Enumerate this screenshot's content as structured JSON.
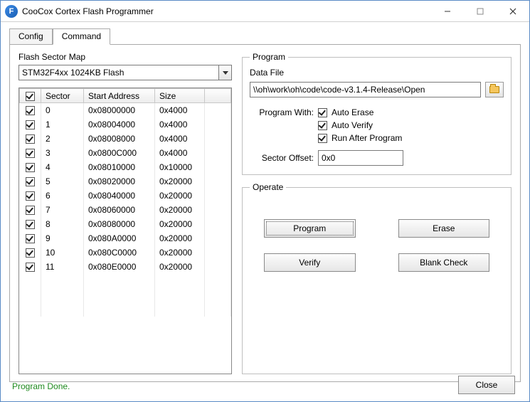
{
  "window": {
    "title": "CooCox Cortex Flash Programmer"
  },
  "tabs": {
    "config": "Config",
    "command": "Command",
    "active": "command"
  },
  "flash_map": {
    "title": "Flash Sector Map",
    "device": "STM32F4xx 1024KB Flash",
    "columns": {
      "check": "",
      "sector": "Sector",
      "start": "Start Address",
      "size": "Size"
    },
    "header_checked": true,
    "rows": [
      {
        "checked": true,
        "sector": "0",
        "start": "0x08000000",
        "size": "0x4000"
      },
      {
        "checked": true,
        "sector": "1",
        "start": "0x08004000",
        "size": "0x4000"
      },
      {
        "checked": true,
        "sector": "2",
        "start": "0x08008000",
        "size": "0x4000"
      },
      {
        "checked": true,
        "sector": "3",
        "start": "0x0800C000",
        "size": "0x4000"
      },
      {
        "checked": true,
        "sector": "4",
        "start": "0x08010000",
        "size": "0x10000"
      },
      {
        "checked": true,
        "sector": "5",
        "start": "0x08020000",
        "size": "0x20000"
      },
      {
        "checked": true,
        "sector": "6",
        "start": "0x08040000",
        "size": "0x20000"
      },
      {
        "checked": true,
        "sector": "7",
        "start": "0x08060000",
        "size": "0x20000"
      },
      {
        "checked": true,
        "sector": "8",
        "start": "0x08080000",
        "size": "0x20000"
      },
      {
        "checked": true,
        "sector": "9",
        "start": "0x080A0000",
        "size": "0x20000"
      },
      {
        "checked": true,
        "sector": "10",
        "start": "0x080C0000",
        "size": "0x20000"
      },
      {
        "checked": true,
        "sector": "11",
        "start": "0x080E0000",
        "size": "0x20000"
      }
    ]
  },
  "program": {
    "legend": "Program",
    "data_file_label": "Data File",
    "data_file_value": "\\\\oh\\work\\oh\\code\\code-v3.1.4-Release\\Open",
    "program_with_label": "Program With:",
    "auto_erase": {
      "label": "Auto Erase",
      "checked": true
    },
    "auto_verify": {
      "label": "Auto Verify",
      "checked": true
    },
    "run_after": {
      "label": "Run After Program",
      "checked": true
    },
    "sector_offset_label": "Sector Offset:",
    "sector_offset_value": "0x0"
  },
  "operate": {
    "legend": "Operate",
    "program_btn": "Program",
    "erase_btn": "Erase",
    "verify_btn": "Verify",
    "blank_btn": "Blank Check"
  },
  "footer": {
    "status": "Program Done.",
    "close": "Close"
  }
}
